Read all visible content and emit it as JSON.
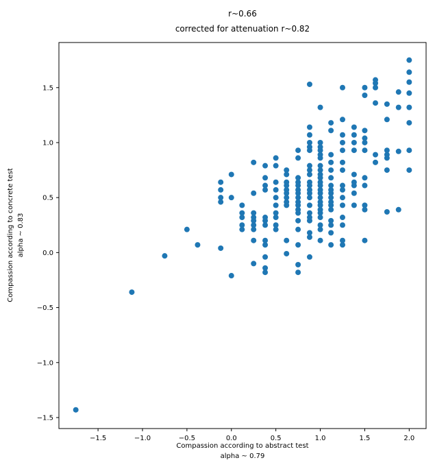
{
  "chart_data": {
    "type": "scatter",
    "title_line1": "r~0.66",
    "title_line2": "corrected for attenuation r~0.82",
    "xlabel_line1": "Compassion according to abstract test",
    "xlabel_line2": "alpha ~ 0.79",
    "ylabel_line1": "Compassion according to concrete test",
    "ylabel_line2": "alpha ~ 0.83",
    "xlim": [
      -1.94,
      2.19
    ],
    "ylim": [
      -1.6,
      1.91
    ],
    "xticks": [
      -1.5,
      -1.0,
      -0.5,
      0.0,
      0.5,
      1.0,
      1.5,
      2.0
    ],
    "yticks": [
      -1.5,
      -1.0,
      -0.5,
      0.0,
      0.5,
      1.0,
      1.5
    ],
    "grid": false,
    "legend": "none",
    "marker_color": "#1f77b4",
    "marker_radius": 4,
    "points": [
      [
        -1.75,
        -1.43
      ],
      [
        -1.12,
        -0.36
      ],
      [
        -0.75,
        -0.03
      ],
      [
        -0.5,
        0.21
      ],
      [
        -0.38,
        0.07
      ],
      [
        -0.12,
        0.04
      ],
      [
        0,
        -0.21
      ],
      [
        -0.12,
        0.46
      ],
      [
        -0.12,
        0.5
      ],
      [
        -0.12,
        0.57
      ],
      [
        -0.12,
        0.64
      ],
      [
        0,
        0.71
      ],
      [
        0,
        0.5
      ],
      [
        0.12,
        0.36
      ],
      [
        0.12,
        0.32
      ],
      [
        0.12,
        0.43
      ],
      [
        0.12,
        0.21
      ],
      [
        0.12,
        0.25
      ],
      [
        0.25,
        -0.1
      ],
      [
        0.25,
        0.11
      ],
      [
        0.25,
        0.21
      ],
      [
        0.25,
        0.25
      ],
      [
        0.25,
        0.29
      ],
      [
        0.25,
        0.32
      ],
      [
        0.25,
        0.36
      ],
      [
        0.25,
        0.54
      ],
      [
        0.25,
        0.82
      ],
      [
        0.38,
        -0.18
      ],
      [
        0.38,
        -0.14
      ],
      [
        0.38,
        -0.04
      ],
      [
        0.38,
        0.07
      ],
      [
        0.38,
        0.11
      ],
      [
        0.38,
        0.25
      ],
      [
        0.38,
        0.29
      ],
      [
        0.38,
        0.32
      ],
      [
        0.38,
        0.57
      ],
      [
        0.38,
        0.61
      ],
      [
        0.38,
        0.68
      ],
      [
        0.38,
        0.79
      ],
      [
        0.5,
        0.21
      ],
      [
        0.5,
        0.25
      ],
      [
        0.5,
        0.32
      ],
      [
        0.5,
        0.36
      ],
      [
        0.5,
        0.43
      ],
      [
        0.5,
        0.5
      ],
      [
        0.5,
        0.57
      ],
      [
        0.5,
        0.64
      ],
      [
        0.5,
        0.79
      ],
      [
        0.5,
        0.86
      ],
      [
        0.62,
        -0.01
      ],
      [
        0.62,
        0.11
      ],
      [
        0.62,
        0.43
      ],
      [
        0.62,
        0.46
      ],
      [
        0.62,
        0.5
      ],
      [
        0.62,
        0.54
      ],
      [
        0.62,
        0.57
      ],
      [
        0.62,
        0.61
      ],
      [
        0.62,
        0.64
      ],
      [
        0.62,
        0.71
      ],
      [
        0.62,
        0.75
      ],
      [
        0.75,
        -0.18
      ],
      [
        0.75,
        -0.11
      ],
      [
        0.75,
        0.07
      ],
      [
        0.75,
        0.21
      ],
      [
        0.75,
        0.29
      ],
      [
        0.75,
        0.36
      ],
      [
        0.75,
        0.39
      ],
      [
        0.75,
        0.43
      ],
      [
        0.75,
        0.46
      ],
      [
        0.75,
        0.5
      ],
      [
        0.75,
        0.54
      ],
      [
        0.75,
        0.57
      ],
      [
        0.75,
        0.61
      ],
      [
        0.75,
        0.64
      ],
      [
        0.75,
        0.68
      ],
      [
        0.75,
        0.86
      ],
      [
        0.75,
        0.93
      ],
      [
        0.88,
        -0.04
      ],
      [
        0.88,
        0.14
      ],
      [
        0.88,
        0.18
      ],
      [
        0.88,
        0.29
      ],
      [
        0.88,
        0.32
      ],
      [
        0.88,
        0.36
      ],
      [
        0.88,
        0.43
      ],
      [
        0.88,
        0.5
      ],
      [
        0.88,
        0.54
      ],
      [
        0.88,
        0.57
      ],
      [
        0.88,
        0.61
      ],
      [
        0.88,
        0.64
      ],
      [
        0.88,
        0.71
      ],
      [
        0.88,
        0.75
      ],
      [
        0.88,
        0.79
      ],
      [
        0.88,
        0.93
      ],
      [
        0.88,
        0.96
      ],
      [
        0.88,
        1.0
      ],
      [
        0.88,
        1.07
      ],
      [
        0.88,
        1.14
      ],
      [
        0.88,
        1.53
      ],
      [
        1,
        0.11
      ],
      [
        1,
        0.21
      ],
      [
        1,
        0.25
      ],
      [
        1,
        0.32
      ],
      [
        1,
        0.36
      ],
      [
        1,
        0.39
      ],
      [
        1,
        0.43
      ],
      [
        1,
        0.46
      ],
      [
        1,
        0.5
      ],
      [
        1,
        0.54
      ],
      [
        1,
        0.57
      ],
      [
        1,
        0.61
      ],
      [
        1,
        0.64
      ],
      [
        1,
        0.68
      ],
      [
        1,
        0.71
      ],
      [
        1,
        0.75
      ],
      [
        1,
        0.79
      ],
      [
        1,
        0.86
      ],
      [
        1,
        0.89
      ],
      [
        1,
        0.93
      ],
      [
        1,
        0.96
      ],
      [
        1,
        1.0
      ],
      [
        1,
        1.32
      ],
      [
        1.12,
        0.07
      ],
      [
        1.12,
        0.18
      ],
      [
        1.12,
        0.25
      ],
      [
        1.12,
        0.29
      ],
      [
        1.12,
        0.39
      ],
      [
        1.12,
        0.43
      ],
      [
        1.12,
        0.46
      ],
      [
        1.12,
        0.5
      ],
      [
        1.12,
        0.54
      ],
      [
        1.12,
        0.57
      ],
      [
        1.12,
        0.61
      ],
      [
        1.12,
        0.68
      ],
      [
        1.12,
        0.75
      ],
      [
        1.12,
        0.82
      ],
      [
        1.12,
        0.89
      ],
      [
        1.12,
        1.11
      ],
      [
        1.12,
        1.18
      ],
      [
        1.25,
        0.07
      ],
      [
        1.25,
        0.11
      ],
      [
        1.25,
        0.25
      ],
      [
        1.25,
        0.32
      ],
      [
        1.25,
        0.43
      ],
      [
        1.25,
        0.5
      ],
      [
        1.25,
        0.57
      ],
      [
        1.25,
        0.61
      ],
      [
        1.25,
        0.75
      ],
      [
        1.25,
        0.82
      ],
      [
        1.25,
        0.93
      ],
      [
        1.25,
        1.0
      ],
      [
        1.25,
        1.07
      ],
      [
        1.25,
        1.21
      ],
      [
        1.25,
        1.5
      ],
      [
        1.38,
        0.43
      ],
      [
        1.38,
        0.54
      ],
      [
        1.38,
        0.61
      ],
      [
        1.38,
        0.64
      ],
      [
        1.38,
        0.71
      ],
      [
        1.38,
        0.93
      ],
      [
        1.38,
        1.0
      ],
      [
        1.38,
        1.07
      ],
      [
        1.38,
        1.14
      ],
      [
        1.5,
        0.11
      ],
      [
        1.5,
        0.39
      ],
      [
        1.5,
        0.43
      ],
      [
        1.5,
        0.61
      ],
      [
        1.5,
        0.68
      ],
      [
        1.5,
        0.93
      ],
      [
        1.5,
        1.0
      ],
      [
        1.5,
        1.04
      ],
      [
        1.5,
        1.11
      ],
      [
        1.5,
        1.43
      ],
      [
        1.5,
        1.5
      ],
      [
        1.62,
        0.82
      ],
      [
        1.62,
        0.89
      ],
      [
        1.62,
        1.36
      ],
      [
        1.62,
        1.5
      ],
      [
        1.62,
        1.54
      ],
      [
        1.62,
        1.57
      ],
      [
        1.75,
        0.37
      ],
      [
        1.75,
        0.75
      ],
      [
        1.75,
        0.86
      ],
      [
        1.75,
        0.89
      ],
      [
        1.75,
        0.93
      ],
      [
        1.75,
        1.21
      ],
      [
        1.75,
        1.35
      ],
      [
        1.88,
        0.39
      ],
      [
        1.88,
        0.92
      ],
      [
        1.88,
        1.32
      ],
      [
        1.88,
        1.46
      ],
      [
        2,
        0.75
      ],
      [
        2,
        0.93
      ],
      [
        2,
        1.18
      ],
      [
        2,
        1.32
      ],
      [
        2,
        1.45
      ],
      [
        2,
        1.55
      ],
      [
        2,
        1.64
      ],
      [
        2,
        1.75
      ]
    ]
  }
}
